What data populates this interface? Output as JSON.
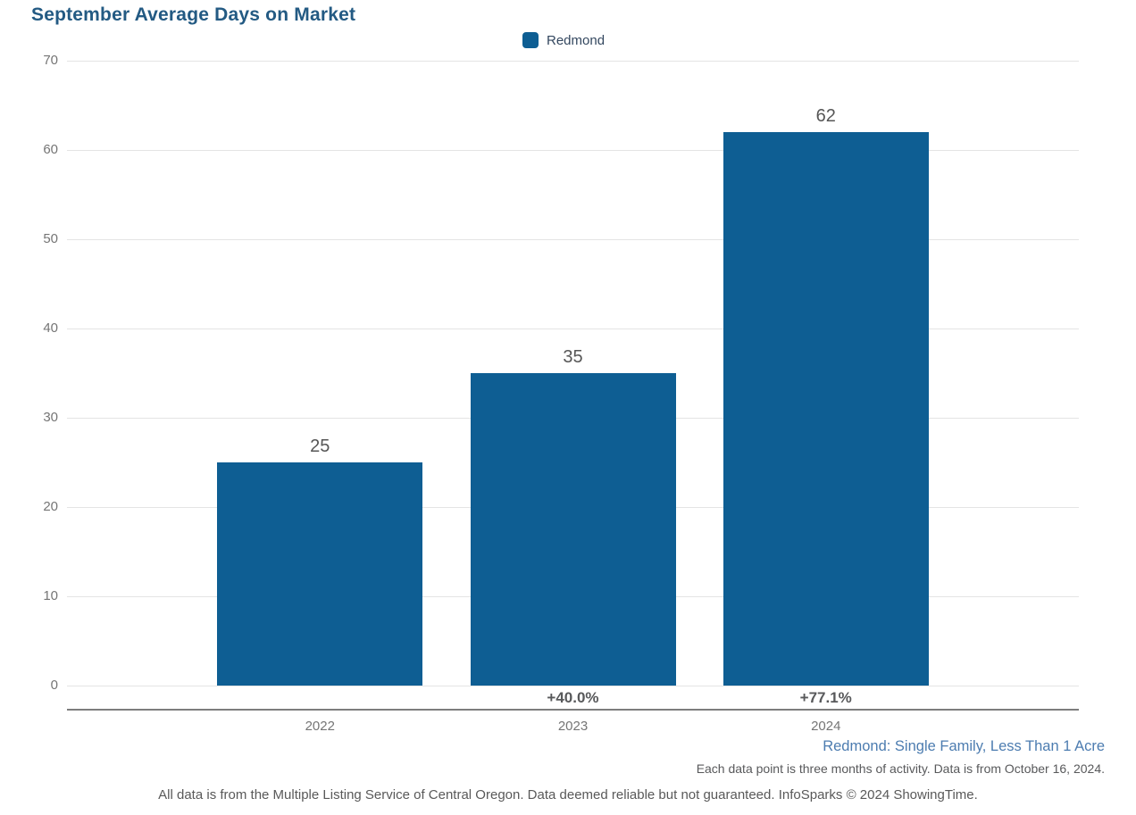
{
  "title": "September Average Days on Market",
  "legend": {
    "label": "Redmond",
    "color": "#0e5e93"
  },
  "chart_data": {
    "type": "bar",
    "title": "September Average Days on Market",
    "series_name": "Redmond",
    "categories": [
      "2022",
      "2023",
      "2024"
    ],
    "values": [
      25,
      35,
      62
    ],
    "value_labels": [
      "25",
      "35",
      "62"
    ],
    "pct_change_labels": [
      "",
      "+40.0%",
      "+77.1%"
    ],
    "xlabel": "",
    "ylabel": "",
    "ylim": [
      0,
      70
    ],
    "yticks": [
      0,
      10,
      20,
      30,
      40,
      50,
      60,
      70
    ],
    "grid": true,
    "legend_position": "top-center",
    "bar_color": "#0e5e93"
  },
  "footer": {
    "series_note": "Redmond: Single Family, Less Than 1 Acre",
    "data_note": "Each data point is three months of activity. Data is from October 16, 2024.",
    "disclaimer": "All data is from the Multiple Listing Service of Central Oregon. Data deemed reliable but not guaranteed. InfoSparks © 2024 ShowingTime."
  },
  "colors": {
    "bar": "#0e5e93",
    "title": "#235a83",
    "tick_label": "#757575",
    "value_label": "#565656",
    "pct_label": "#58595b",
    "footer_link": "#4c7cb0",
    "footer_note": "#58595b",
    "disclaimer": "#595959",
    "gridline": "#e4e4e4",
    "axis_line": "#7d7d7d"
  }
}
